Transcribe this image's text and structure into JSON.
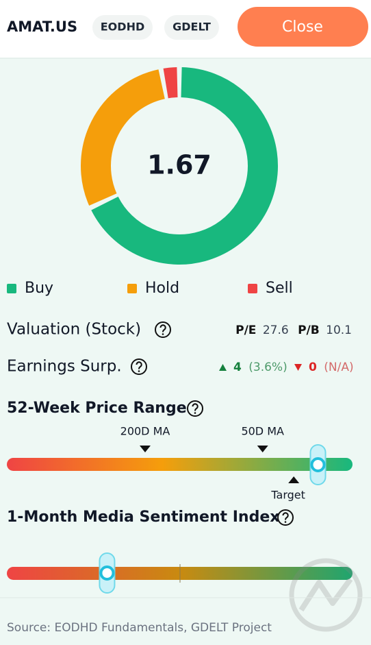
{
  "header": {
    "ticker": "AMAT.US",
    "tags": [
      "EODHD",
      "GDELT"
    ],
    "close_button": "Close"
  },
  "rating": {
    "value": 1.67,
    "segments": [
      {
        "name": "Buy",
        "value": 68,
        "color": "#18b87e"
      },
      {
        "name": "Hold",
        "value": 29,
        "color": "#f59e0b"
      },
      {
        "name": "Sell",
        "value": 3,
        "color": "#ef4444"
      }
    ]
  },
  "valuation": {
    "title": "Valuation (Stock)",
    "pe_label": "P/E",
    "pe": 27.6,
    "pb_label": "P/B",
    "pb": 10.1
  },
  "earnings": {
    "title": "Earnings Surp.",
    "beats": 4,
    "beats_pct": "(3.6%)",
    "misses": 0,
    "misses_pct": "(N/A)"
  },
  "price_range": {
    "title": "52-Week Price Range",
    "markers": [
      {
        "label": "200D MA",
        "position": 0.4
      },
      {
        "label": "50D MA",
        "position": 0.74
      }
    ],
    "target": {
      "label": "Target",
      "position": 0.83
    },
    "current_position": 0.9
  },
  "sentiment": {
    "title": "1-Month Media Sentiment Index",
    "position": 0.29
  },
  "footer": {
    "source": "Source: EODHD Fundamentals, GDELT Project"
  }
}
